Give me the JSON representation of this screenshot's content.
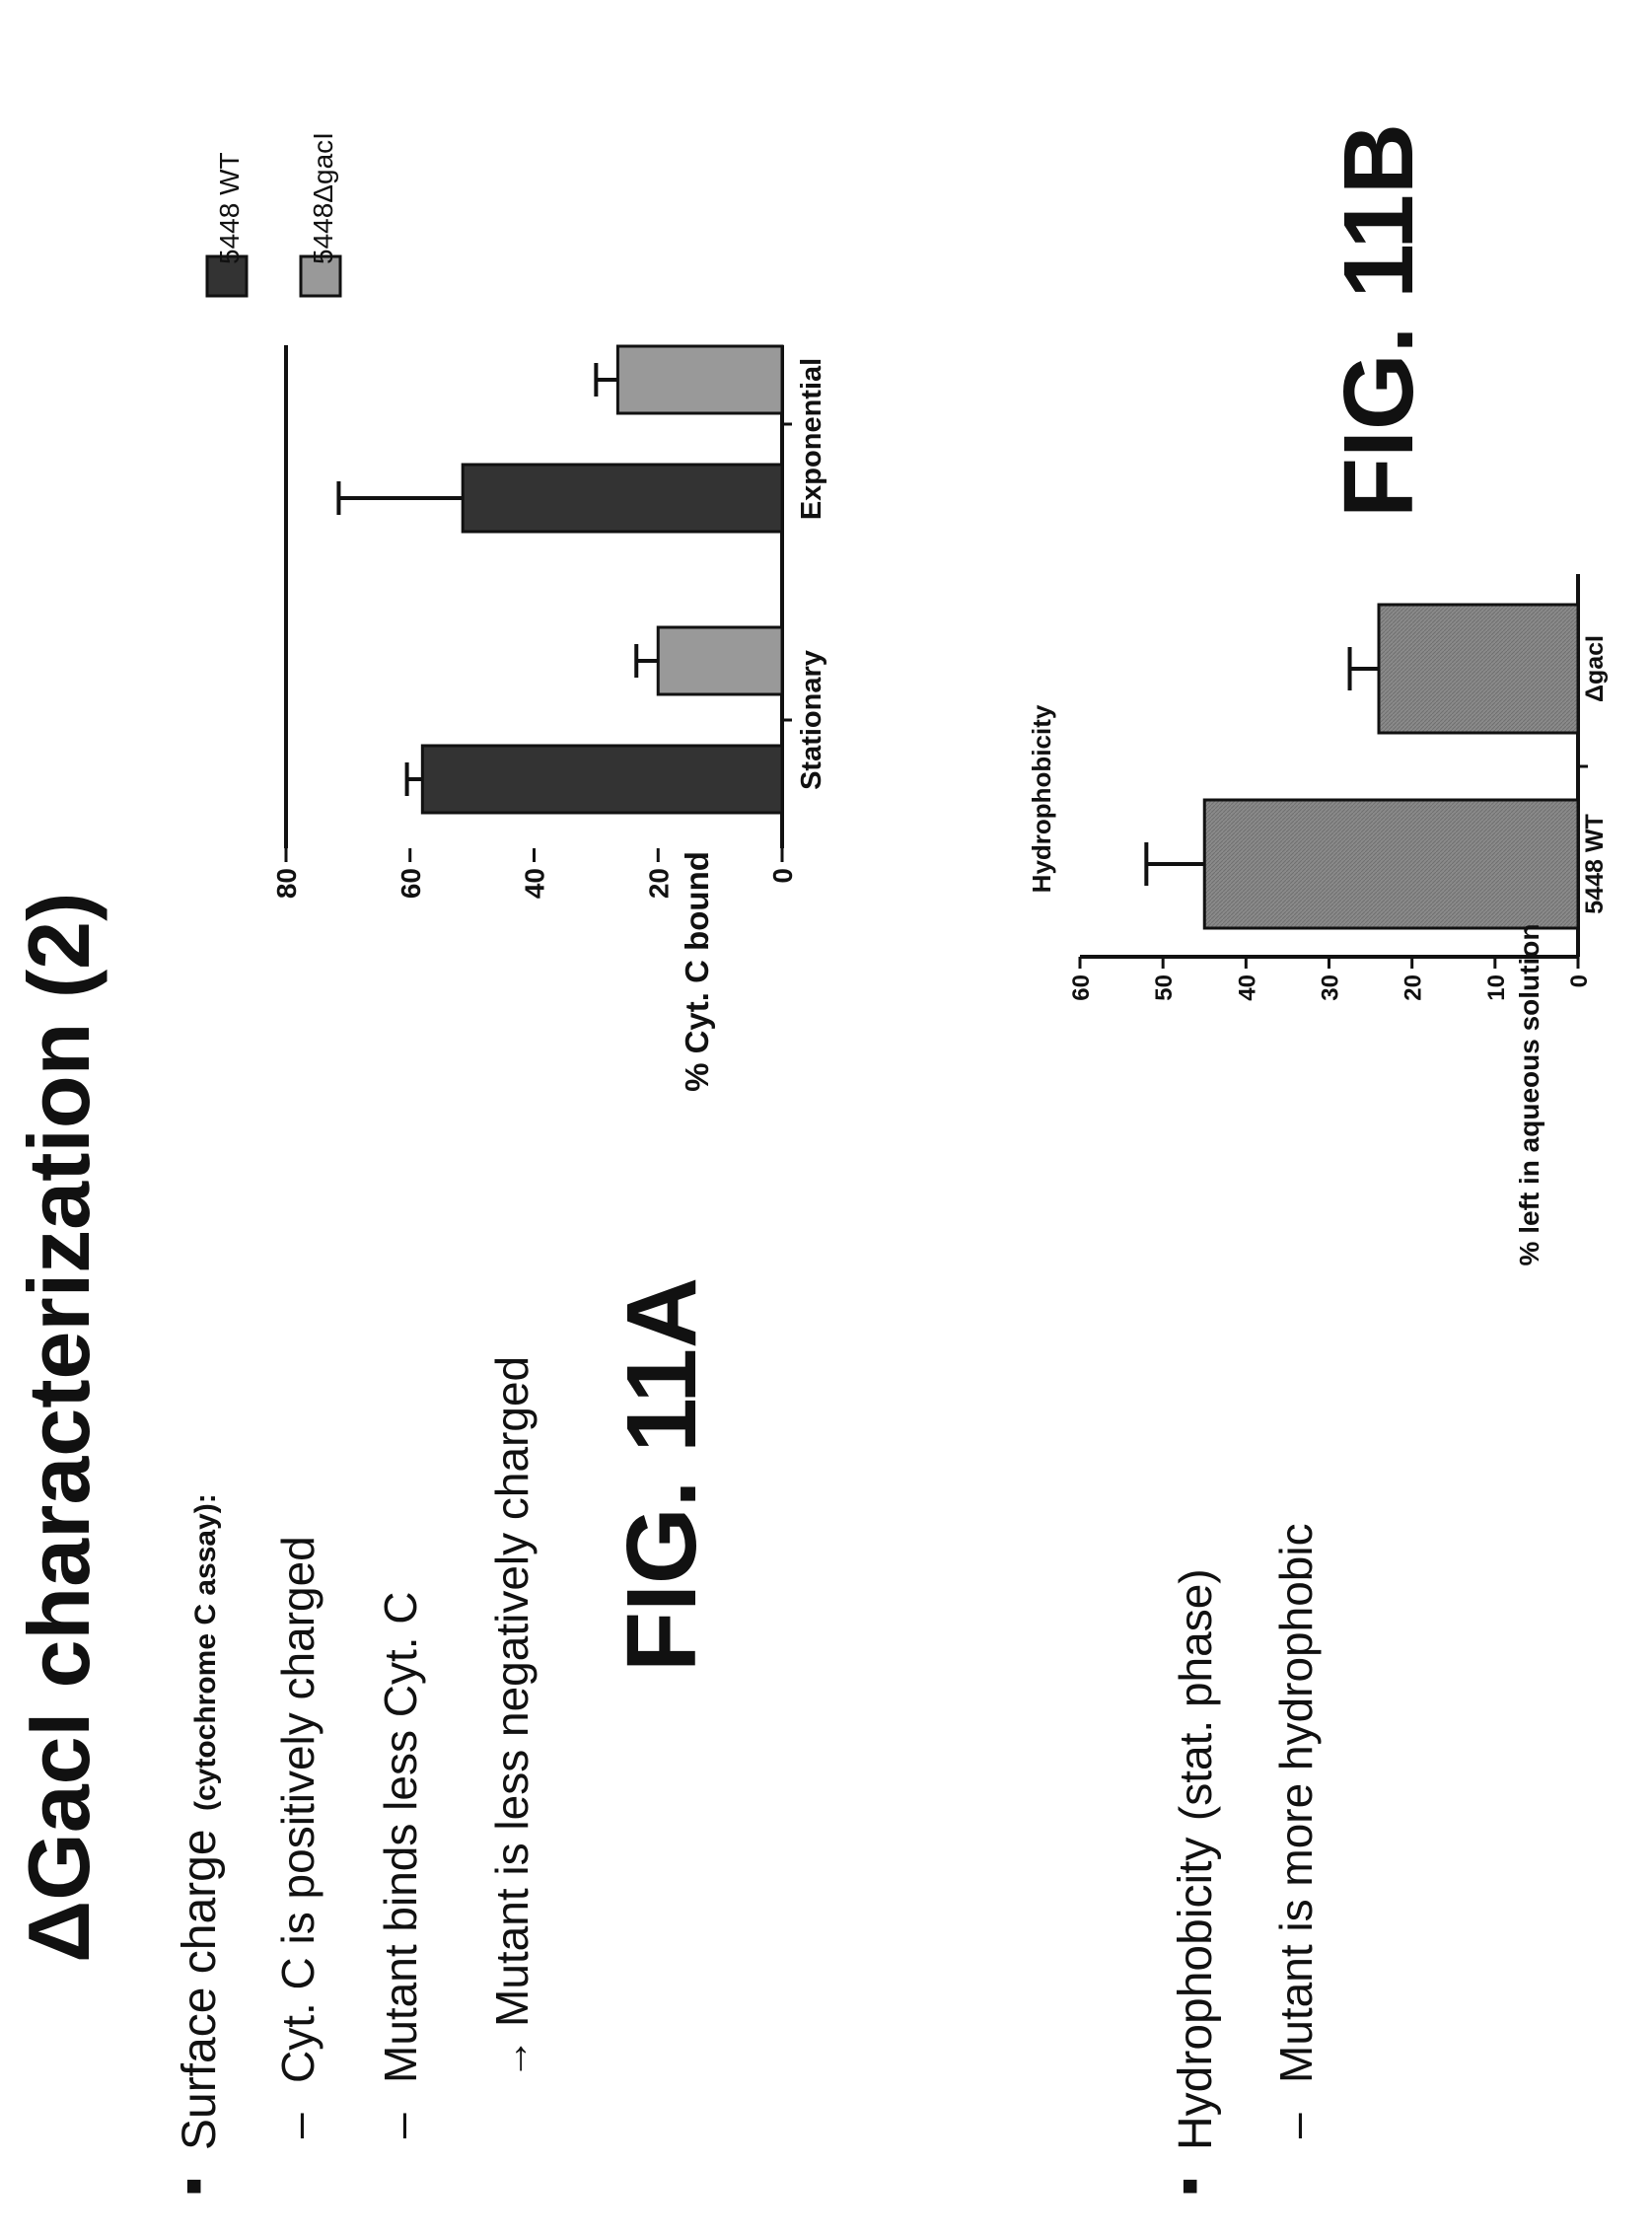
{
  "slide": {
    "title": "ΔGacI characterization (2)",
    "bullet1": {
      "label": "Surface charge",
      "note": "(cytochrome C assay):",
      "sub1": "Cyt. C is positively charged",
      "sub2": "Mutant binds less Cyt. C",
      "sub3": "Mutant is less negatively charged",
      "arrow": "→"
    },
    "bullet2": {
      "label": "Hydrophobicity",
      "note": "(stat. phase)",
      "sub1": "Mutant is more hydrophobic"
    },
    "dash": "–",
    "bullet_mark": "■",
    "fig_a": "FIG. 11A",
    "fig_b": "FIG. 11B"
  },
  "chart_data": [
    {
      "type": "bar",
      "categories": [
        "Stationary",
        "Exponential"
      ],
      "series": [
        {
          "name": "5448 WT",
          "values": [
            58,
            51.5
          ],
          "errors": [
            2.5,
            20
          ],
          "color": "#333333"
        },
        {
          "name": "5448ΔgacI",
          "values": [
            20,
            26.5
          ],
          "errors": [
            3.5,
            3.5
          ],
          "color": "#999999"
        }
      ],
      "ylabel": "% Cyt. C bound",
      "ylim": [
        0,
        80
      ],
      "yticks": [
        0,
        20,
        40,
        60,
        80
      ],
      "legend": "top-right"
    },
    {
      "type": "bar",
      "title": "Hydrophobicity",
      "categories": [
        "5448 WT",
        "ΔgacI"
      ],
      "values": [
        45,
        24
      ],
      "errors": [
        7,
        3.5
      ],
      "color": "#7a7a7a",
      "ylabel": "% left in aqueous solution",
      "ylim": [
        0,
        60
      ],
      "yticks": [
        0,
        10,
        20,
        30,
        40,
        50,
        60
      ]
    }
  ]
}
